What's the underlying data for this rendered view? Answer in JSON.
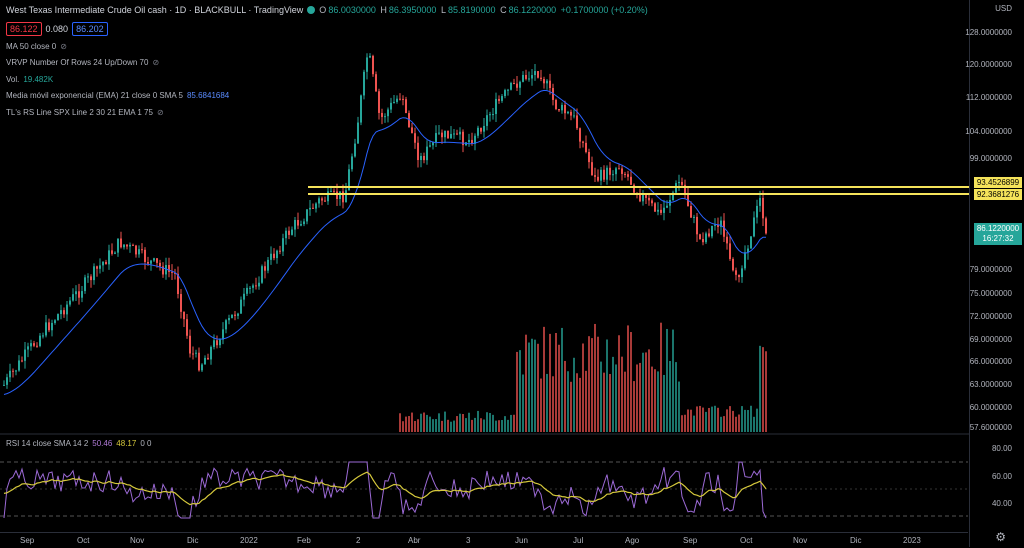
{
  "header": {
    "title": "West Texas Intermediate Crude Oil cash · 1D · BLACKBULL · TradingView",
    "ohlc": [
      {
        "label": "O",
        "value": "86.0030000"
      },
      {
        "label": "H",
        "value": "86.3950000"
      },
      {
        "label": "L",
        "value": "85.8190000"
      },
      {
        "label": "C",
        "value": "86.1220000"
      },
      {
        "label": "",
        "value": "+0.1700000 (+0.20%)"
      }
    ]
  },
  "quote": {
    "bid": "86.122",
    "spread": "0.080",
    "ask": "86.202"
  },
  "indicators": [
    {
      "name": "MA 50 close 0",
      "value": "",
      "hidden": true
    },
    {
      "name": "VRVP Number Of Rows 24 Up/Down 70",
      "value": "",
      "hidden": true
    },
    {
      "name": "Vol.",
      "value": "19.482K",
      "hidden": false
    },
    {
      "name": "Media móvil exponencial (EMA) 21 close 0 SMA 5",
      "value": "85.6841684",
      "hidden": false
    },
    {
      "name": "TL's RS Line SPX Line 2 30 21 EMA 1 75",
      "value": "",
      "hidden": true
    }
  ],
  "yaxis": {
    "currency": "USD",
    "price_ticks": [
      "128.0000000",
      "120.0000000",
      "112.0000000",
      "104.0000000",
      "99.0000000",
      "93.4526899",
      "92.3681276",
      "86.1220000",
      "79.0000000",
      "75.0000000",
      "72.0000000",
      "69.0000000",
      "66.0000000",
      "63.0000000",
      "60.0000000",
      "57.6000000"
    ],
    "hline_1": "93.4526899",
    "hline_2": "92.3681276",
    "current_price": "86.1220000",
    "countdown": "16:27:32"
  },
  "rsi": {
    "label": "RSI 14 close SMA 14 2",
    "value": "50.46",
    "sma": "48.17",
    "extra": "0 0",
    "ticks": [
      "80.00",
      "60.00",
      "40.00"
    ]
  },
  "xaxis": {
    "labels": [
      "Sep",
      "Oct",
      "Nov",
      "Dic",
      "2022",
      "Feb",
      "2",
      "Abr",
      "3",
      "Jun",
      "Jul",
      "Ago",
      "Sep",
      "Oct",
      "Nov",
      "Dic",
      "2023"
    ]
  },
  "colors": {
    "up": "#26a69a",
    "down": "#ef5350",
    "ema": "#2962ff",
    "hline": "#f5e35a",
    "rsi": "#9c6ad6",
    "rsi_sma": "#d6c93c"
  }
}
